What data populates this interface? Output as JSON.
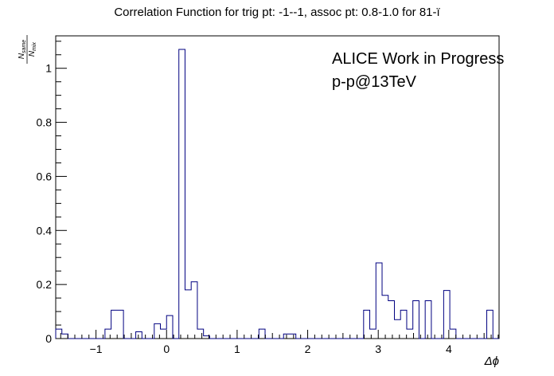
{
  "chart_data": {
    "type": "histogram-step",
    "title": "Correlation Function for trig pt: -1--1, assoc pt: 0.8-1.0 for 81-ï",
    "xlabel": "Δϕ",
    "ylabel": {
      "numerator_main": "N",
      "numerator_sub": "same",
      "denominator_main": "N",
      "denominator_sub": "mix"
    },
    "annotations": [
      "ALICE Work in Progress",
      "p-p@13TeV"
    ],
    "xlim": [
      -1.5708,
      4.7124
    ],
    "ylim": [
      0,
      1.12
    ],
    "x_ticks": [
      {
        "value": -1,
        "label": "−1"
      },
      {
        "value": 0,
        "label": "0"
      },
      {
        "value": 1,
        "label": "1"
      },
      {
        "value": 2,
        "label": "2"
      },
      {
        "value": 3,
        "label": "3"
      },
      {
        "value": 4,
        "label": "4"
      }
    ],
    "y_ticks": [
      {
        "value": 0,
        "label": "0"
      },
      {
        "value": 0.2,
        "label": "0.2"
      },
      {
        "value": 0.4,
        "label": "0.4"
      },
      {
        "value": 0.6,
        "label": "0.6"
      },
      {
        "value": 0.8,
        "label": "0.8"
      },
      {
        "value": 1,
        "label": "1"
      }
    ],
    "bins": 72,
    "values": [
      0.035,
      0.017,
      0,
      0,
      0,
      0,
      0,
      0,
      0.035,
      0.105,
      0.105,
      0,
      0,
      0.025,
      0,
      0,
      0.055,
      0.035,
      0.085,
      0,
      1.07,
      0.18,
      0.21,
      0.035,
      0.01,
      0,
      0,
      0,
      0,
      0,
      0,
      0,
      0,
      0.035,
      0,
      0,
      0,
      0.017,
      0.017,
      0,
      0,
      0,
      0,
      0,
      0,
      0,
      0,
      0,
      0,
      0,
      0.105,
      0.035,
      0.28,
      0.16,
      0.14,
      0.07,
      0.105,
      0.035,
      0.14,
      0,
      0.14,
      0,
      0,
      0.178,
      0.035,
      0,
      0,
      0,
      0,
      0,
      0.105,
      0
    ],
    "line_color": "#000080",
    "grid": false,
    "legend": "none"
  }
}
